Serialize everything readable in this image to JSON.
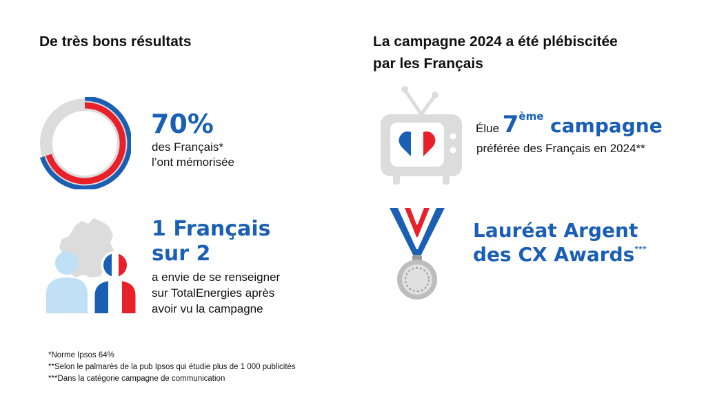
{
  "left": {
    "title": "De très bons résultats",
    "stat1": {
      "value": "70%",
      "line1": "des Français*",
      "line2": "l’ont mémorisée",
      "memorized_percent": 70,
      "norm_percent": 64
    },
    "stat2": {
      "line1": "1 Français",
      "line2": "sur 2",
      "desc1": "a envie de se renseigner",
      "desc2": "sur TotalEnergies après",
      "desc3": "avoir vu la campagne"
    }
  },
  "right": {
    "title_line1": "La campagne 2024 a été plébiscitée",
    "title_line2": "par les Français",
    "award1": {
      "prefix": "Élue ",
      "rank": "7",
      "sup": "ème",
      "word": " campagne",
      "line2": "préférée des Français en 2024**"
    },
    "award2": {
      "line1": "Lauréat Argent",
      "line2": "des CX Awards",
      "marker": "***"
    }
  },
  "footnotes": [
    "*Norme Ipsos 64%",
    "**Selon le palmarès de la pub Ipsos qui étudie plus de 1 000 publicités",
    "***Dans la catégorie campagne de communication"
  ],
  "colors": {
    "blue": "#1a5fb4",
    "red": "#e8202a",
    "grey": "#dcdcdc",
    "light_blue": "#bfe0f5"
  },
  "icons": [
    "donut-chart-icon",
    "france-map-icon",
    "person-icon",
    "tv-icon",
    "heart-flag-icon",
    "medal-icon"
  ]
}
